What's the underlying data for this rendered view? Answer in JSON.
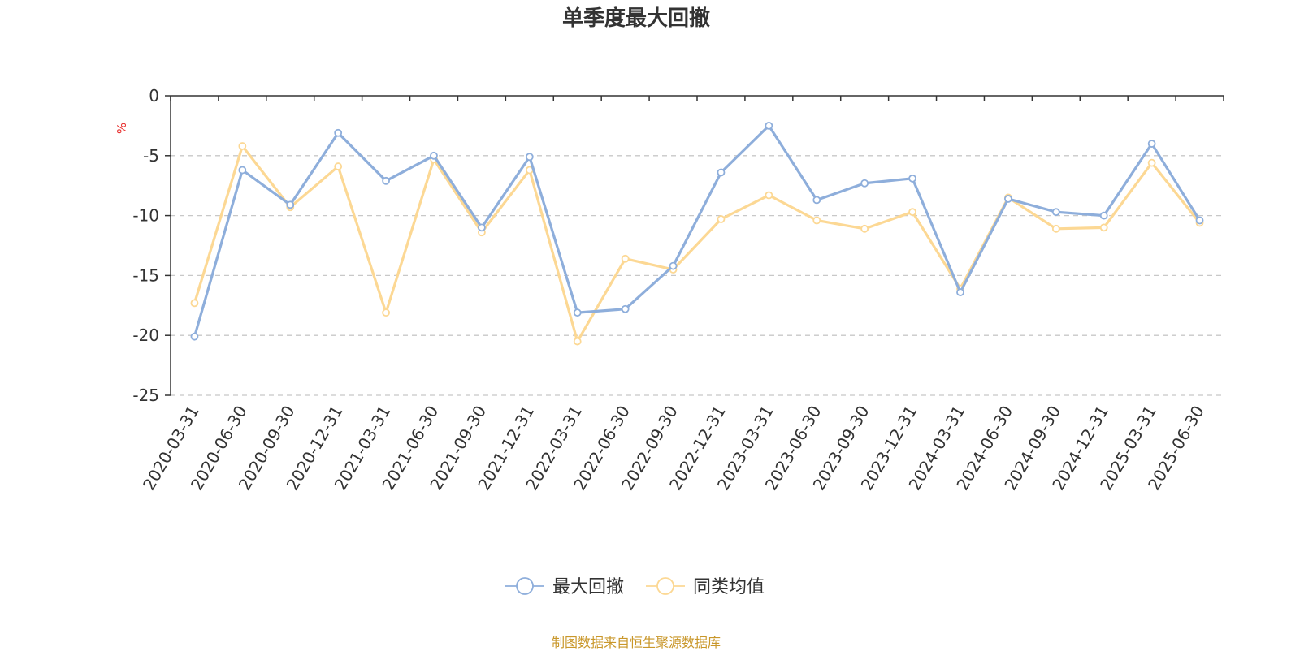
{
  "title": "单季度最大回撤",
  "source_note": "制图数据来自恒生聚源数据库",
  "colors": {
    "series1": "#8eaedb",
    "series2": "#fcd894",
    "unit": "#e8302f",
    "grid": "#c8c8c8",
    "axis": "#333333"
  },
  "chart_data": {
    "type": "line",
    "title": "单季度最大回撤",
    "ylabel": "%",
    "xlabel": "",
    "ylim": [
      -25,
      0
    ],
    "yticks": [
      0,
      -5,
      -10,
      -15,
      -20,
      -25
    ],
    "grid": "horizontal dashed",
    "legend_position": "bottom-center",
    "categories": [
      "2020-03-31",
      "2020-06-30",
      "2020-09-30",
      "2020-12-31",
      "2021-03-31",
      "2021-06-30",
      "2021-09-30",
      "2021-12-31",
      "2022-03-31",
      "2022-06-30",
      "2022-09-30",
      "2022-12-31",
      "2023-03-31",
      "2023-06-30",
      "2023-09-30",
      "2023-12-31",
      "2024-03-31",
      "2024-06-30",
      "2024-09-30",
      "2024-12-31",
      "2025-03-31",
      "2025-06-30"
    ],
    "series": [
      {
        "name": "最大回撤",
        "values": [
          -20.1,
          -6.2,
          -9.1,
          -3.1,
          -7.1,
          -5.0,
          -11.0,
          -5.1,
          -18.1,
          -17.8,
          -14.2,
          -6.4,
          -2.5,
          -8.7,
          -7.3,
          -6.9,
          -16.4,
          -8.6,
          -9.7,
          -10.0,
          -4.0,
          -10.4
        ]
      },
      {
        "name": "同类均值",
        "values": [
          -17.3,
          -4.2,
          -9.3,
          -5.9,
          -18.1,
          -5.3,
          -11.4,
          -6.2,
          -20.5,
          -13.6,
          -14.5,
          -10.3,
          -8.3,
          -10.4,
          -11.1,
          -9.7,
          -16.1,
          -8.5,
          -11.1,
          -11.0,
          -5.6,
          -10.6
        ]
      }
    ]
  }
}
